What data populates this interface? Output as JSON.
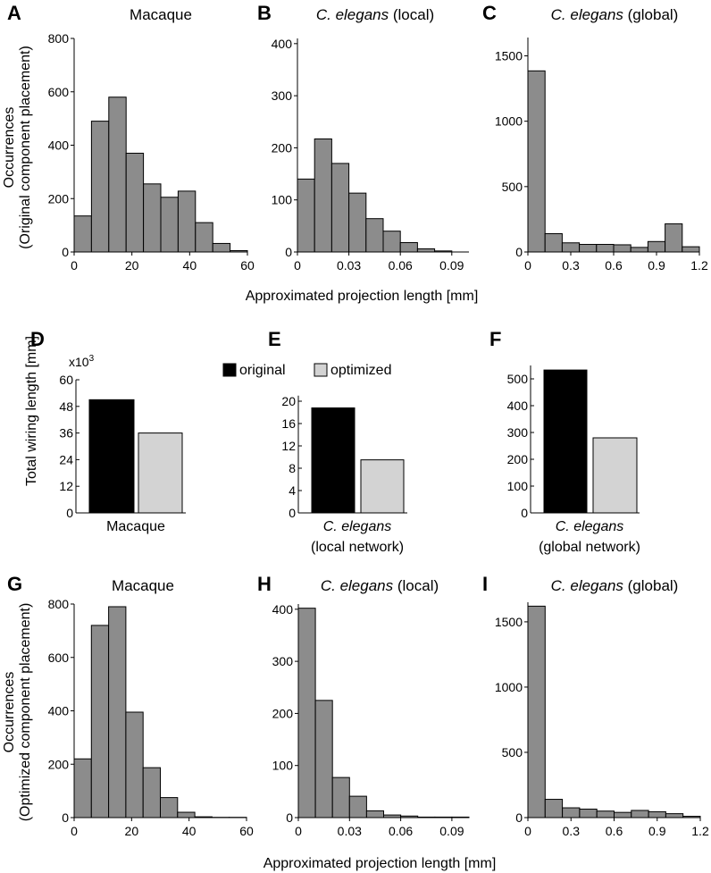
{
  "axis_label_x": "Approximated projection length [mm]",
  "ylabel_top": [
    "Occurrences",
    "(Original component placement)"
  ],
  "ylabel_bottom": [
    "Occurrences",
    "(Optimized component placement)"
  ],
  "ylabel_middle": "Total wiring length [mm]",
  "legend": {
    "original": "original",
    "optimized": "optimized",
    "original_color": "#000000",
    "optimized_color": "#d3d3d3"
  },
  "colors": {
    "hist_fill": "#8c8c8c"
  },
  "chart_data": [
    {
      "id": "A",
      "panel_label": "A",
      "type": "bar",
      "title_italic": "",
      "title_rest": "Macaque",
      "bin_edges": [
        0,
        6,
        12,
        18,
        24,
        30,
        36,
        42,
        48,
        54,
        60
      ],
      "values": [
        135,
        490,
        580,
        370,
        255,
        205,
        228,
        110,
        32,
        5
      ],
      "xticks": [
        "0",
        "20",
        "40",
        "60"
      ],
      "xtick_values": [
        0,
        20,
        40,
        60
      ],
      "yticks": [
        "0",
        "200",
        "400",
        "600",
        "800"
      ],
      "ytick_values": [
        0,
        200,
        400,
        600,
        800
      ],
      "xlim": [
        0,
        60
      ],
      "ylim": [
        0,
        800
      ]
    },
    {
      "id": "B",
      "panel_label": "B",
      "type": "bar",
      "title_italic": "C. elegans",
      "title_rest": " (local)",
      "bin_edges": [
        0,
        0.01,
        0.02,
        0.03,
        0.04,
        0.05,
        0.06,
        0.07,
        0.08,
        0.09,
        0.1
      ],
      "values": [
        140,
        217,
        170,
        113,
        64,
        40,
        18,
        6,
        2,
        0
      ],
      "xticks": [
        "0",
        "0.03",
        "0.06",
        "0.09"
      ],
      "xtick_values": [
        0,
        0.03,
        0.06,
        0.09
      ],
      "yticks": [
        "0",
        "100",
        "200",
        "300",
        "400"
      ],
      "ytick_values": [
        0,
        100,
        200,
        300,
        400
      ],
      "xlim": [
        0,
        0.1
      ],
      "ylim": [
        0,
        410
      ]
    },
    {
      "id": "C",
      "panel_label": "C",
      "type": "bar",
      "title_italic": "C. elegans",
      "title_rest": " (global)",
      "bin_edges": [
        0,
        0.12,
        0.24,
        0.36,
        0.48,
        0.6,
        0.72,
        0.84,
        0.96,
        1.08,
        1.2
      ],
      "values": [
        1385,
        140,
        70,
        58,
        58,
        55,
        35,
        80,
        215,
        40
      ],
      "xticks": [
        "0",
        "0.3",
        "0.6",
        "0.9",
        "1.2"
      ],
      "xtick_values": [
        0,
        0.3,
        0.6,
        0.9,
        1.2
      ],
      "yticks": [
        "0",
        "500",
        "1000",
        "1500"
      ],
      "ytick_values": [
        0,
        500,
        1000,
        1500
      ],
      "xlim": [
        0,
        1.2
      ],
      "ylim": [
        0,
        1640
      ]
    },
    {
      "id": "D",
      "panel_label": "D",
      "type": "bar",
      "multiplier": "x10",
      "multiplier_exp": "3",
      "category_lines": [
        "Macaque"
      ],
      "category_italic": false,
      "series": [
        {
          "name": "original",
          "value": 51
        },
        {
          "name": "optimized",
          "value": 36
        }
      ],
      "yticks": [
        "0",
        "12",
        "24",
        "36",
        "48",
        "60"
      ],
      "ytick_values": [
        0,
        12,
        24,
        36,
        48,
        60
      ],
      "ylim": [
        0,
        60
      ]
    },
    {
      "id": "E",
      "panel_label": "E",
      "type": "bar",
      "category_lines": [
        "C. elegans",
        "(local network)"
      ],
      "category_italic": true,
      "series": [
        {
          "name": "original",
          "value": 18.8
        },
        {
          "name": "optimized",
          "value": 9.5
        }
      ],
      "yticks": [
        "0",
        "4",
        "8",
        "12",
        "16",
        "20"
      ],
      "ytick_values": [
        0,
        4,
        8,
        12,
        16,
        20
      ],
      "ylim": [
        0,
        21
      ]
    },
    {
      "id": "F",
      "panel_label": "F",
      "type": "bar",
      "category_lines": [
        "C. elegans",
        "(global network)"
      ],
      "category_italic": true,
      "series": [
        {
          "name": "original",
          "value": 533
        },
        {
          "name": "optimized",
          "value": 280
        }
      ],
      "yticks": [
        "0",
        "100",
        "200",
        "300",
        "400",
        "500"
      ],
      "ytick_values": [
        0,
        100,
        200,
        300,
        400,
        500
      ],
      "ylim": [
        0,
        550
      ]
    },
    {
      "id": "G",
      "panel_label": "G",
      "type": "bar",
      "title_italic": "",
      "title_rest": "Macaque",
      "bin_edges": [
        0,
        6,
        12,
        18,
        24,
        30,
        36,
        42,
        48,
        54,
        60
      ],
      "values": [
        220,
        720,
        790,
        395,
        187,
        75,
        20,
        3,
        1,
        1
      ],
      "xticks": [
        "0",
        "20",
        "40",
        "60"
      ],
      "xtick_values": [
        0,
        20,
        40,
        60
      ],
      "yticks": [
        "0",
        "200",
        "400",
        "600",
        "800"
      ],
      "ytick_values": [
        0,
        200,
        400,
        600,
        800
      ],
      "xlim": [
        0,
        60
      ],
      "ylim": [
        0,
        800
      ]
    },
    {
      "id": "H",
      "panel_label": "H",
      "type": "bar",
      "title_italic": "C. elegans",
      "title_rest": " (local)",
      "bin_edges": [
        0,
        0.01,
        0.02,
        0.03,
        0.04,
        0.05,
        0.06,
        0.07,
        0.08,
        0.09,
        0.1
      ],
      "values": [
        402,
        225,
        77,
        41,
        13,
        5,
        3,
        1,
        1,
        1
      ],
      "xticks": [
        "0",
        "0.03",
        "0.06",
        "0.09"
      ],
      "xtick_values": [
        0,
        0.03,
        0.06,
        0.09
      ],
      "yticks": [
        "0",
        "100",
        "200",
        "300",
        "400"
      ],
      "ytick_values": [
        0,
        100,
        200,
        300,
        400
      ],
      "xlim": [
        0,
        0.1
      ],
      "ylim": [
        0,
        410
      ]
    },
    {
      "id": "I",
      "panel_label": "I",
      "type": "bar",
      "title_italic": "C. elegans",
      "title_rest": " (global)",
      "bin_edges": [
        0,
        0.12,
        0.24,
        0.36,
        0.48,
        0.6,
        0.72,
        0.84,
        0.96,
        1.08,
        1.2
      ],
      "values": [
        1620,
        140,
        75,
        65,
        50,
        40,
        55,
        45,
        30,
        10
      ],
      "xticks": [
        "0",
        "0.3",
        "0.6",
        "0.9",
        "1.2"
      ],
      "xtick_values": [
        0,
        0.3,
        0.6,
        0.9,
        1.2
      ],
      "yticks": [
        "0",
        "500",
        "1000",
        "1500"
      ],
      "ytick_values": [
        0,
        500,
        1000,
        1500
      ],
      "xlim": [
        0,
        1.2
      ],
      "ylim": [
        0,
        1650
      ]
    }
  ]
}
